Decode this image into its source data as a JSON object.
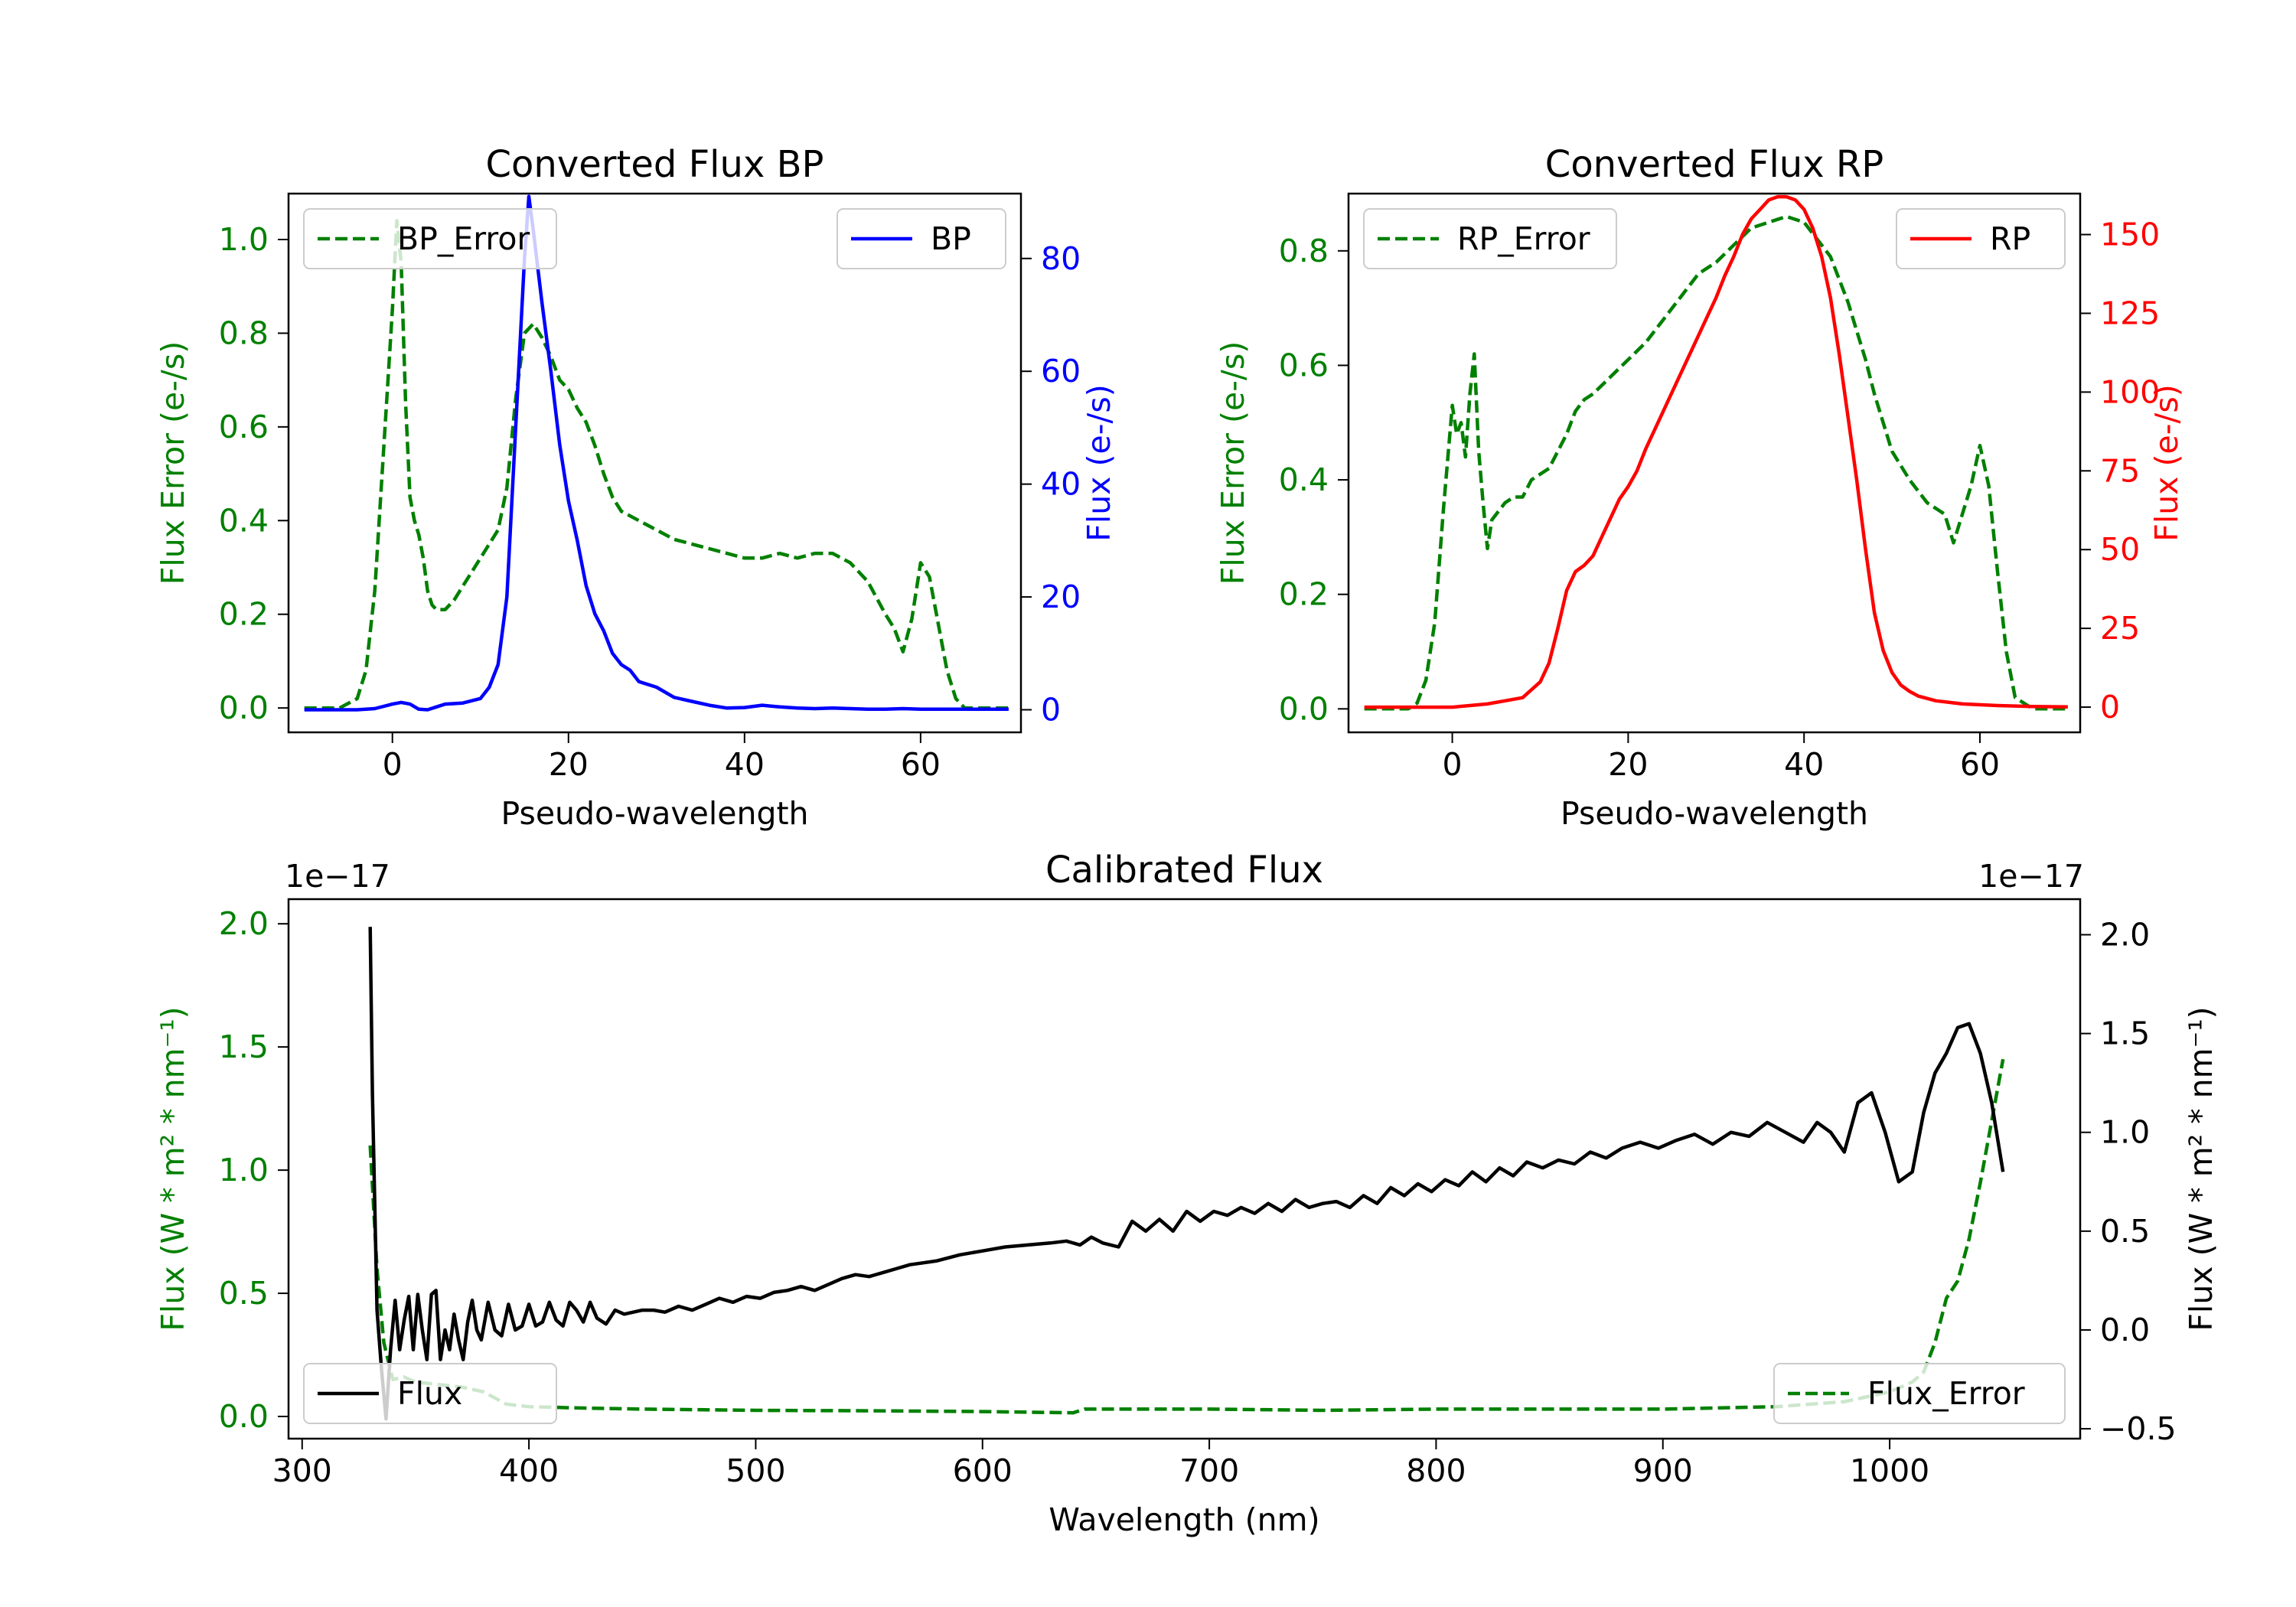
{
  "chart_data": [
    {
      "type": "line",
      "title": "Converted Flux BP",
      "xlabel": "Pseudo-wavelength",
      "xlim": [
        -11.8,
        71.4
      ],
      "xticks": [
        0,
        20,
        40,
        60
      ],
      "left_axis": {
        "label": "Flux Error (e-/s)",
        "color": "#008000",
        "ylim": [
          -0.052,
          1.098
        ],
        "ticks": [
          0.0,
          0.2,
          0.4,
          0.6,
          0.8,
          1.0
        ],
        "tick_labels": [
          "0.0",
          "0.2",
          "0.4",
          "0.6",
          "0.8",
          "1.0"
        ]
      },
      "right_axis": {
        "label": "Flux (e-/s)",
        "color": "#0000ff",
        "ylim": [
          -4,
          91.5
        ],
        "ticks": [
          0,
          20,
          40,
          60,
          80
        ],
        "tick_labels": [
          "0",
          "20",
          "40",
          "60",
          "80"
        ]
      },
      "legend_left": {
        "label": "BP_Error",
        "position": "upper left"
      },
      "legend_right": {
        "label": "BP",
        "position": "upper right"
      },
      "series": [
        {
          "name": "BP_Error",
          "axis": "left",
          "color": "#008000",
          "dash": true,
          "x": [
            -10,
            -6,
            -4,
            -3,
            -2,
            -1,
            0,
            0.5,
            1,
            1.5,
            2,
            2.5,
            3,
            3.5,
            4,
            4.5,
            5,
            6,
            7,
            8,
            9,
            10,
            11,
            12,
            13,
            14,
            15,
            16,
            17,
            18,
            19,
            20,
            21,
            22,
            23,
            24,
            25,
            26,
            28,
            30,
            32,
            34,
            36,
            38,
            40,
            42,
            44,
            46,
            48,
            50,
            52,
            54,
            56,
            57,
            58,
            59,
            60,
            61,
            62,
            63,
            64,
            65,
            66,
            68,
            70
          ],
          "y": [
            0.0,
            0.0,
            0.02,
            0.08,
            0.25,
            0.55,
            0.85,
            1.04,
            0.95,
            0.65,
            0.45,
            0.4,
            0.37,
            0.32,
            0.25,
            0.22,
            0.21,
            0.21,
            0.23,
            0.26,
            0.29,
            0.32,
            0.35,
            0.38,
            0.47,
            0.66,
            0.8,
            0.82,
            0.79,
            0.75,
            0.7,
            0.68,
            0.64,
            0.61,
            0.56,
            0.5,
            0.45,
            0.42,
            0.4,
            0.38,
            0.36,
            0.35,
            0.34,
            0.33,
            0.32,
            0.32,
            0.33,
            0.32,
            0.33,
            0.33,
            0.31,
            0.27,
            0.2,
            0.17,
            0.12,
            0.19,
            0.31,
            0.28,
            0.18,
            0.08,
            0.02,
            0.0,
            0.0,
            0.0,
            0.0
          ]
        },
        {
          "name": "BP",
          "axis": "right",
          "color": "#0000ff",
          "dash": false,
          "x": [
            -10,
            -6,
            -4,
            -2,
            0,
            1,
            2,
            3,
            4,
            5,
            6,
            8,
            10,
            11,
            12,
            13,
            14,
            15,
            15.5,
            16,
            17,
            18,
            19,
            20,
            21,
            22,
            23,
            24,
            25,
            26,
            27,
            28,
            30,
            32,
            34,
            36,
            38,
            40,
            42,
            44,
            46,
            48,
            50,
            52,
            54,
            56,
            58,
            60,
            62,
            64,
            66,
            68,
            70
          ],
          "y": [
            0,
            0,
            0,
            0.2,
            1,
            1.3,
            1,
            0.1,
            0,
            0.5,
            1,
            1.2,
            2,
            4,
            8,
            20,
            50,
            80,
            91,
            85,
            72,
            60,
            47,
            37,
            30,
            22,
            17,
            14,
            10,
            8,
            7,
            5,
            4,
            2.2,
            1.5,
            0.8,
            0.3,
            0.4,
            0.8,
            0.5,
            0.3,
            0.2,
            0.3,
            0.2,
            0.1,
            0.1,
            0.2,
            0.1,
            0.1,
            0.1,
            0.1,
            0.1,
            0.1
          ]
        }
      ]
    },
    {
      "type": "line",
      "title": "Converted Flux RP",
      "xlabel": "Pseudo-wavelength",
      "xlim": [
        -11.8,
        71.4
      ],
      "xticks": [
        0,
        20,
        40,
        60
      ],
      "left_axis": {
        "label": "Flux Error (e-/s)",
        "color": "#008000",
        "ylim": [
          -0.041,
          0.9
        ],
        "ticks": [
          0.0,
          0.2,
          0.4,
          0.6,
          0.8
        ],
        "tick_labels": [
          "0.0",
          "0.2",
          "0.4",
          "0.6",
          "0.8"
        ]
      },
      "right_axis": {
        "label": "Flux (e-/s)",
        "color": "#ff0000",
        "ylim": [
          -8,
          163
        ],
        "ticks": [
          0,
          25,
          50,
          75,
          100,
          125,
          150
        ],
        "tick_labels": [
          "0",
          "25",
          "50",
          "75",
          "100",
          "125",
          "150"
        ]
      },
      "legend_left": {
        "label": "RP_Error",
        "position": "upper left"
      },
      "legend_right": {
        "label": "RP",
        "position": "upper right"
      },
      "series": [
        {
          "name": "RP_Error",
          "axis": "left",
          "color": "#008000",
          "dash": true,
          "x": [
            -10,
            -5,
            -4,
            -3,
            -2,
            -1,
            0,
            0.5,
            1,
            1.5,
            2,
            2.5,
            3,
            3.5,
            4,
            4.5,
            5,
            6,
            7,
            8,
            9,
            10,
            11,
            12,
            13,
            14,
            15,
            16,
            18,
            20,
            22,
            24,
            26,
            28,
            30,
            32,
            34,
            36,
            38,
            40,
            41,
            42,
            43,
            44,
            45,
            46,
            47,
            48,
            49,
            50,
            52,
            54,
            55,
            56,
            57,
            58,
            59,
            60,
            61,
            62,
            63,
            64,
            66,
            70
          ],
          "y": [
            0.0,
            0.0,
            0.01,
            0.05,
            0.15,
            0.35,
            0.53,
            0.48,
            0.5,
            0.44,
            0.55,
            0.62,
            0.45,
            0.36,
            0.28,
            0.33,
            0.34,
            0.36,
            0.37,
            0.37,
            0.4,
            0.41,
            0.42,
            0.45,
            0.48,
            0.52,
            0.54,
            0.55,
            0.58,
            0.61,
            0.64,
            0.68,
            0.72,
            0.76,
            0.78,
            0.81,
            0.84,
            0.85,
            0.86,
            0.85,
            0.83,
            0.81,
            0.79,
            0.75,
            0.71,
            0.66,
            0.61,
            0.55,
            0.5,
            0.45,
            0.4,
            0.36,
            0.35,
            0.34,
            0.29,
            0.34,
            0.39,
            0.46,
            0.39,
            0.24,
            0.1,
            0.02,
            0.0,
            0.0
          ]
        },
        {
          "name": "RP",
          "axis": "right",
          "color": "#ff0000",
          "dash": false,
          "x": [
            -10,
            -4,
            0,
            2,
            4,
            6,
            8,
            10,
            11,
            12,
            13,
            14,
            15,
            16,
            17,
            18,
            19,
            20,
            21,
            22,
            23,
            24,
            25,
            26,
            27,
            28,
            29,
            30,
            31,
            32,
            33,
            34,
            35,
            36,
            37,
            38,
            39,
            40,
            41,
            42,
            43,
            44,
            45,
            46,
            47,
            48,
            49,
            50,
            51,
            52,
            53,
            55,
            58,
            62,
            66,
            70
          ],
          "y": [
            0,
            0,
            0,
            0.5,
            1,
            2,
            3,
            8,
            14,
            25,
            37,
            43,
            45,
            48,
            54,
            60,
            66,
            70,
            75,
            82,
            88,
            94,
            100,
            106,
            112,
            118,
            124,
            130,
            137,
            143,
            150,
            155,
            158,
            161,
            162,
            162,
            161,
            158,
            152,
            143,
            130,
            112,
            92,
            72,
            50,
            30,
            18,
            11,
            7,
            5,
            3.5,
            2,
            1,
            0.5,
            0.2,
            0.1
          ]
        }
      ]
    },
    {
      "type": "line",
      "title": "Calibrated Flux",
      "xlabel": "Wavelength (nm)",
      "xlim": [
        294,
        1084
      ],
      "xticks": [
        300,
        400,
        500,
        600,
        700,
        800,
        900,
        1000
      ],
      "left_axis": {
        "label": "Flux (W * m² * nm⁻¹)",
        "color": "#008000",
        "scale_label": "1e−17",
        "ylim": [
          -0.09,
          2.1
        ],
        "ticks": [
          0.0,
          0.5,
          1.0,
          1.5,
          2.0
        ],
        "tick_labels": [
          "0.0",
          "0.5",
          "1.0",
          "1.5",
          "2.0"
        ]
      },
      "right_axis": {
        "label": "Flux (W * m² * nm⁻¹)",
        "color": "#000000",
        "scale_label": "1e−17",
        "ylim": [
          -0.55,
          2.18
        ],
        "ticks": [
          -0.5,
          0.0,
          0.5,
          1.0,
          1.5,
          2.0
        ],
        "tick_labels": [
          "−0.5",
          "0.0",
          "0.5",
          "1.0",
          "1.5",
          "2.0"
        ]
      },
      "legend_left": {
        "label": "Flux",
        "position": "lower left"
      },
      "legend_right": {
        "label": "Flux_Error",
        "position": "lower right"
      },
      "series": [
        {
          "name": "Flux_Error",
          "axis": "left",
          "color": "#008000",
          "dash": true,
          "x": [
            330,
            333,
            336,
            340,
            345,
            350,
            360,
            370,
            380,
            390,
            400,
            420,
            450,
            500,
            550,
            600,
            640,
            645,
            660,
            700,
            750,
            800,
            850,
            900,
            950,
            980,
            1000,
            1010,
            1015,
            1020,
            1025,
            1030,
            1035,
            1040,
            1045,
            1050
          ],
          "y": [
            1.1,
            0.6,
            0.3,
            0.15,
            0.16,
            0.14,
            0.13,
            0.12,
            0.1,
            0.05,
            0.04,
            0.035,
            0.03,
            0.025,
            0.023,
            0.02,
            0.015,
            0.03,
            0.03,
            0.03,
            0.025,
            0.03,
            0.03,
            0.03,
            0.04,
            0.06,
            0.1,
            0.14,
            0.18,
            0.3,
            0.48,
            0.55,
            0.72,
            0.95,
            1.2,
            1.45
          ]
        },
        {
          "name": "Flux",
          "axis": "right",
          "color": "#000000",
          "dash": false,
          "x": [
            330,
            331,
            333,
            335,
            337,
            339,
            341,
            343,
            345,
            347,
            349,
            351,
            353,
            355,
            357,
            359,
            361,
            363,
            365,
            367,
            369,
            371,
            373,
            375,
            377,
            379,
            382,
            385,
            388,
            391,
            394,
            397,
            400,
            403,
            406,
            409,
            412,
            415,
            418,
            421,
            424,
            427,
            430,
            434,
            438,
            442,
            446,
            450,
            455,
            460,
            466,
            472,
            478,
            484,
            490,
            496,
            502,
            508,
            514,
            520,
            526,
            532,
            538,
            544,
            550,
            556,
            562,
            568,
            574,
            580,
            590,
            600,
            610,
            620,
            630,
            637,
            643,
            648,
            653,
            660,
            666,
            672,
            678,
            684,
            690,
            696,
            702,
            708,
            714,
            720,
            726,
            732,
            738,
            744,
            750,
            756,
            762,
            768,
            774,
            780,
            786,
            792,
            798,
            804,
            810,
            816,
            822,
            828,
            834,
            840,
            847,
            854,
            861,
            868,
            875,
            882,
            890,
            898,
            906,
            914,
            922,
            930,
            938,
            946,
            954,
            962,
            968,
            974,
            980,
            986,
            992,
            998,
            1004,
            1010,
            1015,
            1020,
            1025,
            1030,
            1035,
            1040,
            1045,
            1050
          ],
          "y": [
            2.04,
            1.2,
            0.1,
            -0.2,
            -0.45,
            -0.1,
            0.15,
            -0.1,
            0.05,
            0.17,
            -0.1,
            0.18,
            0.0,
            -0.15,
            0.18,
            0.2,
            -0.15,
            0.0,
            -0.1,
            0.08,
            -0.05,
            -0.15,
            0.04,
            0.15,
            0.0,
            -0.05,
            0.14,
            0.0,
            -0.03,
            0.13,
            0.0,
            0.02,
            0.13,
            0.02,
            0.04,
            0.14,
            0.05,
            0.02,
            0.14,
            0.1,
            0.04,
            0.14,
            0.06,
            0.03,
            0.1,
            0.08,
            0.09,
            0.1,
            0.1,
            0.09,
            0.12,
            0.1,
            0.13,
            0.16,
            0.14,
            0.17,
            0.16,
            0.19,
            0.2,
            0.22,
            0.2,
            0.23,
            0.26,
            0.28,
            0.27,
            0.29,
            0.31,
            0.33,
            0.34,
            0.35,
            0.38,
            0.4,
            0.42,
            0.43,
            0.44,
            0.45,
            0.43,
            0.47,
            0.44,
            0.42,
            0.55,
            0.5,
            0.56,
            0.5,
            0.6,
            0.55,
            0.6,
            0.58,
            0.62,
            0.59,
            0.64,
            0.6,
            0.66,
            0.62,
            0.64,
            0.65,
            0.62,
            0.68,
            0.64,
            0.72,
            0.68,
            0.74,
            0.7,
            0.76,
            0.73,
            0.8,
            0.75,
            0.82,
            0.78,
            0.85,
            0.82,
            0.86,
            0.84,
            0.9,
            0.87,
            0.92,
            0.95,
            0.92,
            0.96,
            0.99,
            0.94,
            1.0,
            0.98,
            1.05,
            1.0,
            0.95,
            1.05,
            1.0,
            0.9,
            1.15,
            1.2,
            1.0,
            0.75,
            0.8,
            1.1,
            1.3,
            1.4,
            1.53,
            1.55,
            1.4,
            1.15,
            0.8
          ]
        }
      ]
    }
  ]
}
